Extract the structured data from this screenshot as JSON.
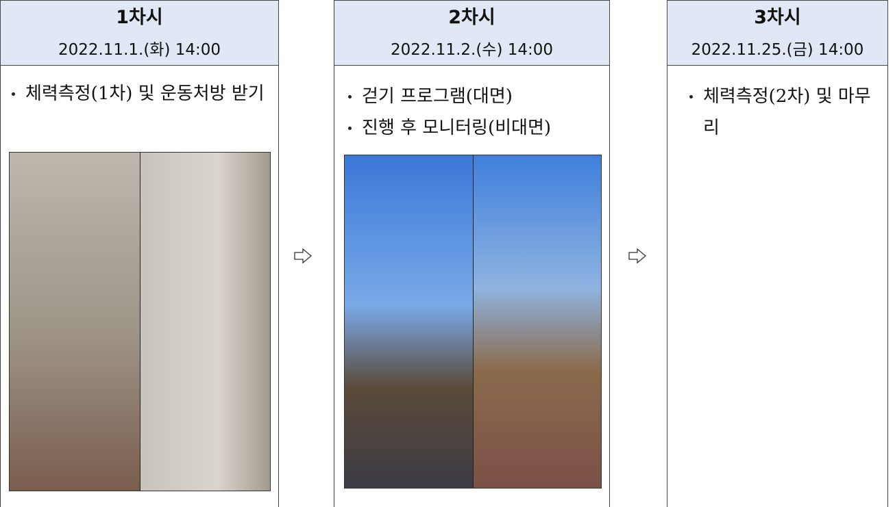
{
  "columns": [
    {
      "title": "1차시",
      "date": "2022.11.1.(화) 14:00",
      "bullets": [
        "체력측정(1차) 및 운동처방 받기"
      ]
    },
    {
      "title": "2차시",
      "date": "2022.11.2.(수) 14:00",
      "bullets": [
        "걷기 프로그램(대면)",
        "진행 후 모니터링(비대면)"
      ]
    },
    {
      "title": "3차시",
      "date": "2022.11.25.(금) 14:00",
      "bullets": [
        "체력측정(2차) 및 마무리"
      ]
    }
  ]
}
